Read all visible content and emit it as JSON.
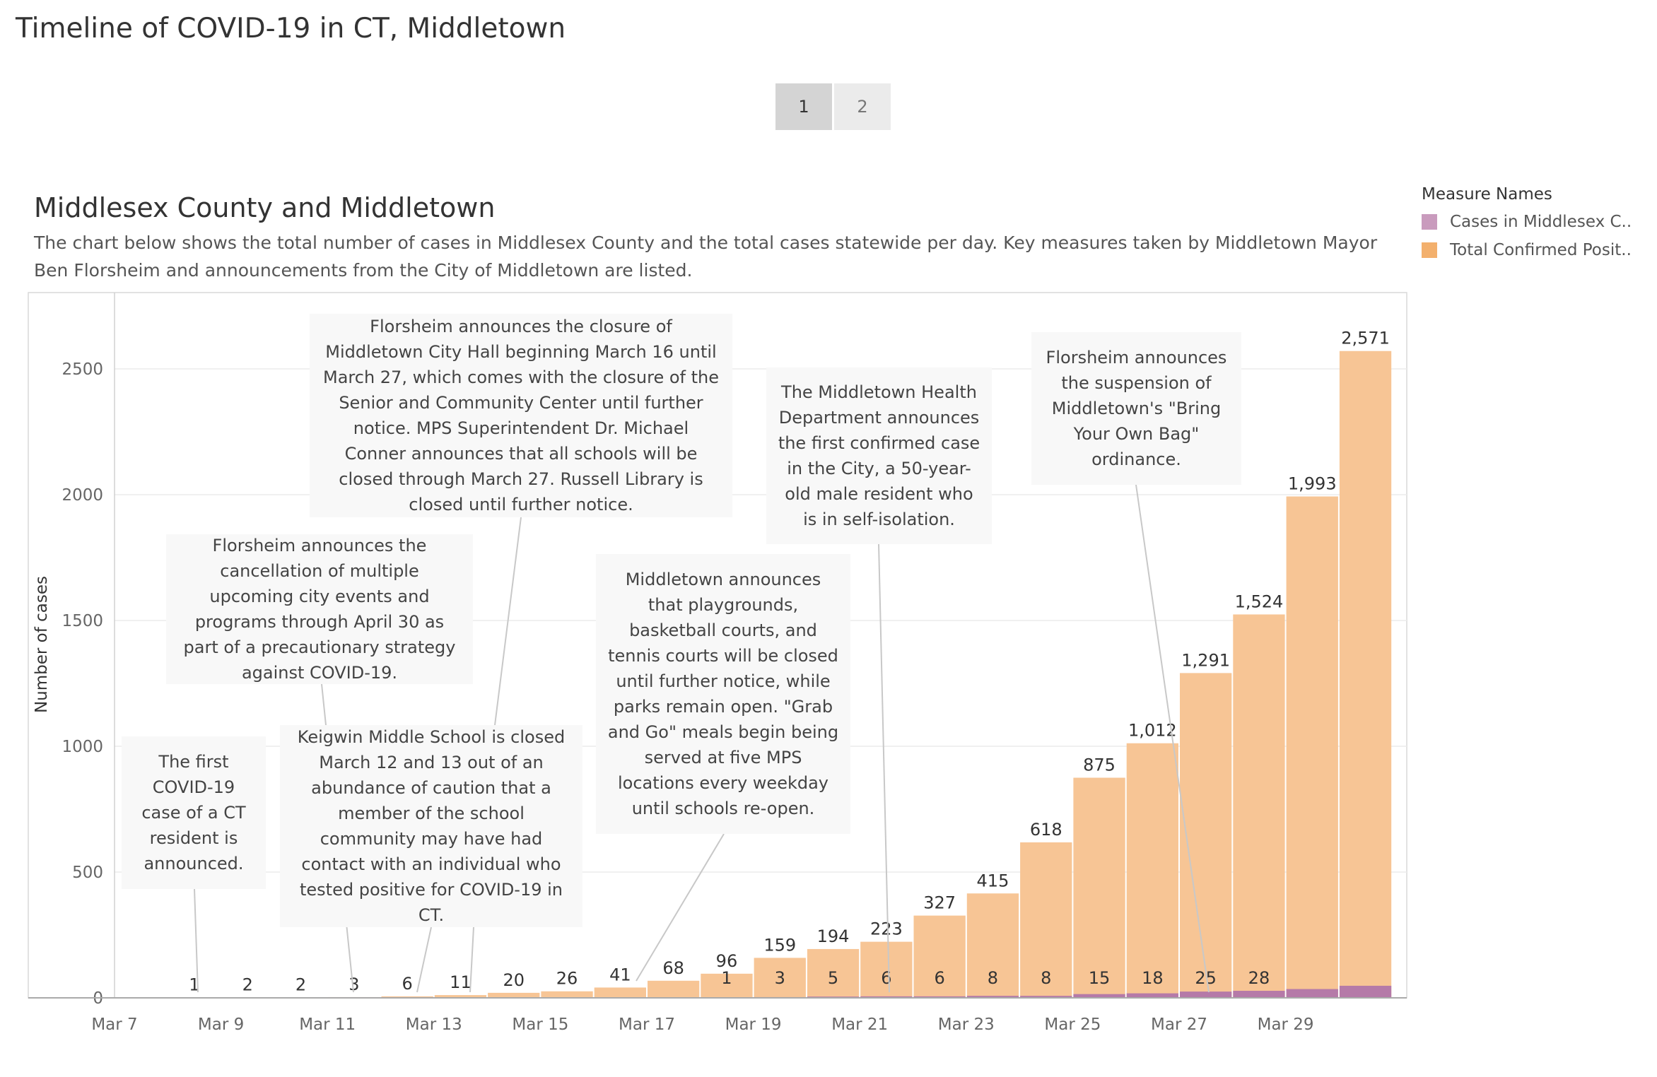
{
  "page_title": "Timeline of COVID-19 in CT, Middletown",
  "tabs": [
    {
      "label": "1",
      "active": true
    },
    {
      "label": "2",
      "active": false
    }
  ],
  "section_title": "Middlesex County and Middletown",
  "description": "The chart below shows the total number of cases in Middlesex County and the total cases statewide per day. Key measures taken by Middletown Mayor Ben Florsheim and announcements from the City of Middletown are listed.",
  "legend": {
    "title": "Measure Names",
    "items": [
      {
        "label": "Cases in Middlesex C..",
        "color": "#c99bbd"
      },
      {
        "label": "Total Confirmed Posit..",
        "color": "#f3b06d"
      }
    ]
  },
  "colors": {
    "total": "#f7c595",
    "middlesex": "#b57aa8",
    "grid": "#ececec",
    "axis": "#bbbbbb",
    "leader": "#c8c8c8"
  },
  "chart_data": {
    "type": "bar",
    "stacked": false,
    "title": "Middlesex County and Middletown",
    "xlabel": "",
    "ylabel": "Number of cases",
    "ylim": [
      0,
      2800
    ],
    "y_ticks": [
      0,
      500,
      1000,
      1500,
      2000,
      2500
    ],
    "categories": [
      "Mar 7",
      "Mar 8",
      "Mar 9",
      "Mar 10",
      "Mar 11",
      "Mar 12",
      "Mar 13",
      "Mar 14",
      "Mar 15",
      "Mar 16",
      "Mar 17",
      "Mar 18",
      "Mar 19",
      "Mar 20",
      "Mar 21",
      "Mar 22",
      "Mar 23",
      "Mar 24",
      "Mar 25",
      "Mar 26",
      "Mar 27",
      "Mar 28",
      "Mar 29",
      "Mar 30"
    ],
    "x_tick_labels": [
      "Mar 7",
      "",
      "Mar 9",
      "",
      "Mar 11",
      "",
      "Mar 13",
      "",
      "Mar 15",
      "",
      "Mar 17",
      "",
      "Mar 19",
      "",
      "Mar 21",
      "",
      "Mar 23",
      "",
      "Mar 25",
      "",
      "Mar 27",
      "",
      "Mar 29",
      ""
    ],
    "series": [
      {
        "name": "Total Confirmed Positive",
        "values": [
          null,
          1,
          2,
          2,
          3,
          6,
          11,
          20,
          26,
          41,
          68,
          96,
          159,
          194,
          223,
          327,
          415,
          618,
          875,
          1012,
          1291,
          1524,
          1993,
          2571
        ],
        "labels": [
          "",
          "1",
          "2",
          "2",
          "3",
          "6",
          "11",
          "20",
          "26",
          "41",
          "68",
          "96",
          "159",
          "194",
          "223",
          "327",
          "415",
          "618",
          "875",
          "1,012",
          "1,291",
          "1,524",
          "1,993",
          "2,571"
        ]
      },
      {
        "name": "Cases in Middlesex County",
        "values": [
          null,
          null,
          null,
          null,
          null,
          null,
          null,
          null,
          null,
          null,
          null,
          1,
          3,
          5,
          6,
          6,
          8,
          8,
          15,
          18,
          25,
          28,
          35,
          48
        ],
        "labels": [
          "",
          "",
          "",
          "",
          "",
          "",
          "",
          "",
          "",
          "",
          "",
          "1",
          "3",
          "5",
          "6",
          "6",
          "8",
          "8",
          "15",
          "18",
          "25",
          "28",
          "",
          ""
        ]
      }
    ],
    "annotations": [
      {
        "text": "The first COVID-19 case of a CT resident is announced."
      },
      {
        "text": "Florsheim announces the cancellation of multiple upcoming city events and programs through April 30 as part of a precautionary strategy against COVID-19."
      },
      {
        "text": "Keigwin Middle School is closed March 12 and 13 out of an abundance of caution that a member of the school community may have had contact with an individual who tested positive for COVID-19 in CT."
      },
      {
        "text": "Florsheim announces the closure of Middletown City Hall beginning March 16 until March 27, which comes with the closure of the Senior and Community Center until further notice. MPS Superintendent Dr. Michael Conner announces that all schools will be closed through March 27. Russell Library is closed until further notice."
      },
      {
        "text": "Middletown announces that playgrounds, basketball courts, and tennis courts will be closed until further notice, while parks remain open. \"Grab and Go\" meals begin being served at five MPS locations every weekday until schools re-open."
      },
      {
        "text": "The Middletown Health Department announces the first confirmed case in the City, a 50-year-old male resident who is in self-isolation."
      },
      {
        "text": "Florsheim announces the suspension of Middletown's \"Bring Your Own Bag\" ordinance."
      }
    ]
  }
}
